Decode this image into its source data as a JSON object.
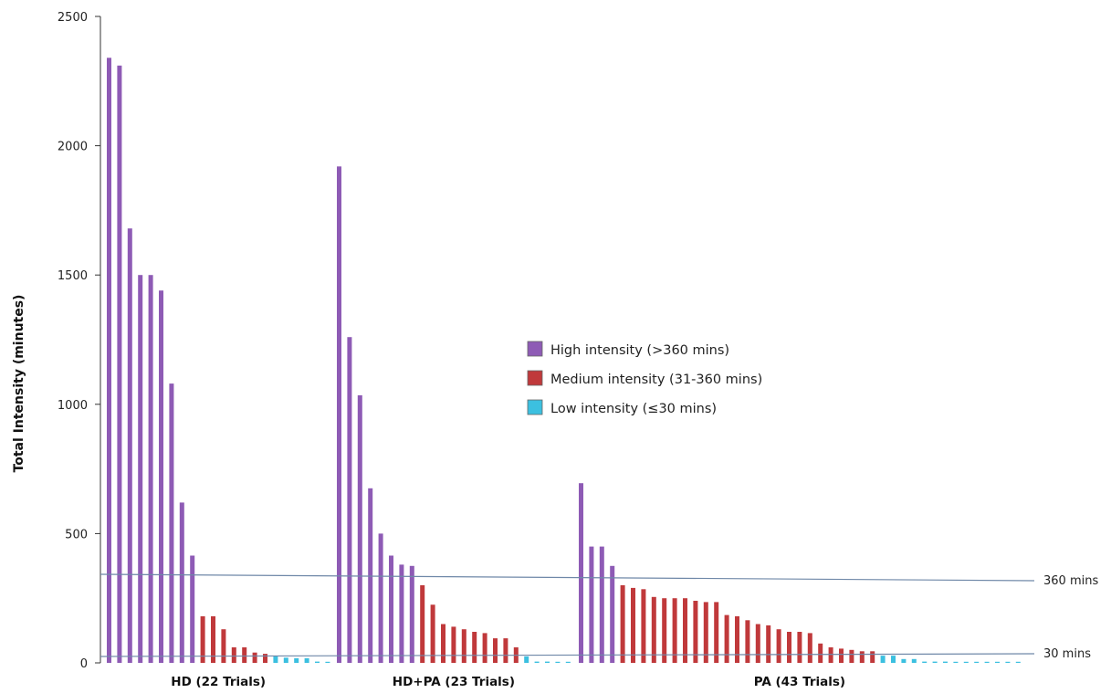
{
  "chart_data": {
    "type": "bar",
    "ylabel": "Total Intensity (minutes)",
    "ylim": [
      0,
      2500
    ],
    "yticks": [
      "0",
      "500",
      "1000",
      "1500",
      "2000",
      "2500"
    ],
    "grid": false,
    "legend_position": "center",
    "legend": [
      {
        "label": "High intensity (>360 mins)",
        "color": "#8e5bb5"
      },
      {
        "label": "Medium  intensity (31-360 mins)",
        "color": "#c0393b"
      },
      {
        "label": "Low intensity (≤30 mins)",
        "color": "#3cc0e0"
      }
    ],
    "reference_lines": [
      {
        "label": "360 mins",
        "value": 360
      },
      {
        "label": "30 mins",
        "value": 30
      }
    ],
    "groups": [
      {
        "label": "HD (22 Trials)",
        "values": [
          2340,
          2310,
          1680,
          1500,
          1500,
          1440,
          1080,
          620,
          415,
          180,
          180,
          130,
          60,
          60,
          40,
          35,
          25,
          20,
          18,
          18,
          5,
          3
        ]
      },
      {
        "label": "HD+PA (23 Trials)",
        "values": [
          1920,
          1260,
          1035,
          675,
          500,
          415,
          380,
          375,
          300,
          225,
          150,
          140,
          130,
          120,
          115,
          95,
          95,
          60,
          25,
          5,
          5,
          3,
          3
        ]
      },
      {
        "label": "PA (43 Trials)",
        "values": [
          695,
          450,
          450,
          375,
          300,
          290,
          285,
          255,
          250,
          250,
          250,
          240,
          235,
          235,
          185,
          180,
          165,
          150,
          145,
          130,
          120,
          120,
          115,
          75,
          60,
          55,
          50,
          45,
          45,
          28,
          28,
          15,
          15,
          5,
          5,
          5,
          3,
          3,
          3,
          3,
          3,
          3,
          3
        ]
      }
    ]
  }
}
